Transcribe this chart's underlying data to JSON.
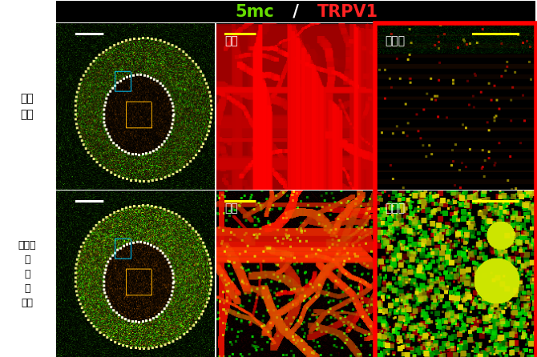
{
  "title_green": "5mc",
  "title_slash": " / ",
  "title_red": "TRPV1",
  "label_row1": "정상\n조직",
  "label_row2": "퇴행성\n디\n스\n크\n조직",
  "label_nucleus1": "수핵",
  "label_annulus1": "섬유릆",
  "label_nucleus2": "수핵",
  "label_annulus2": "섬유릆",
  "bg_color": "#ffffff",
  "title_bar_color": "#000000",
  "panel_bg": "#000000",
  "red_border": "#ff0000",
  "figure_width": 6.7,
  "figure_height": 4.46,
  "dpi": 100
}
